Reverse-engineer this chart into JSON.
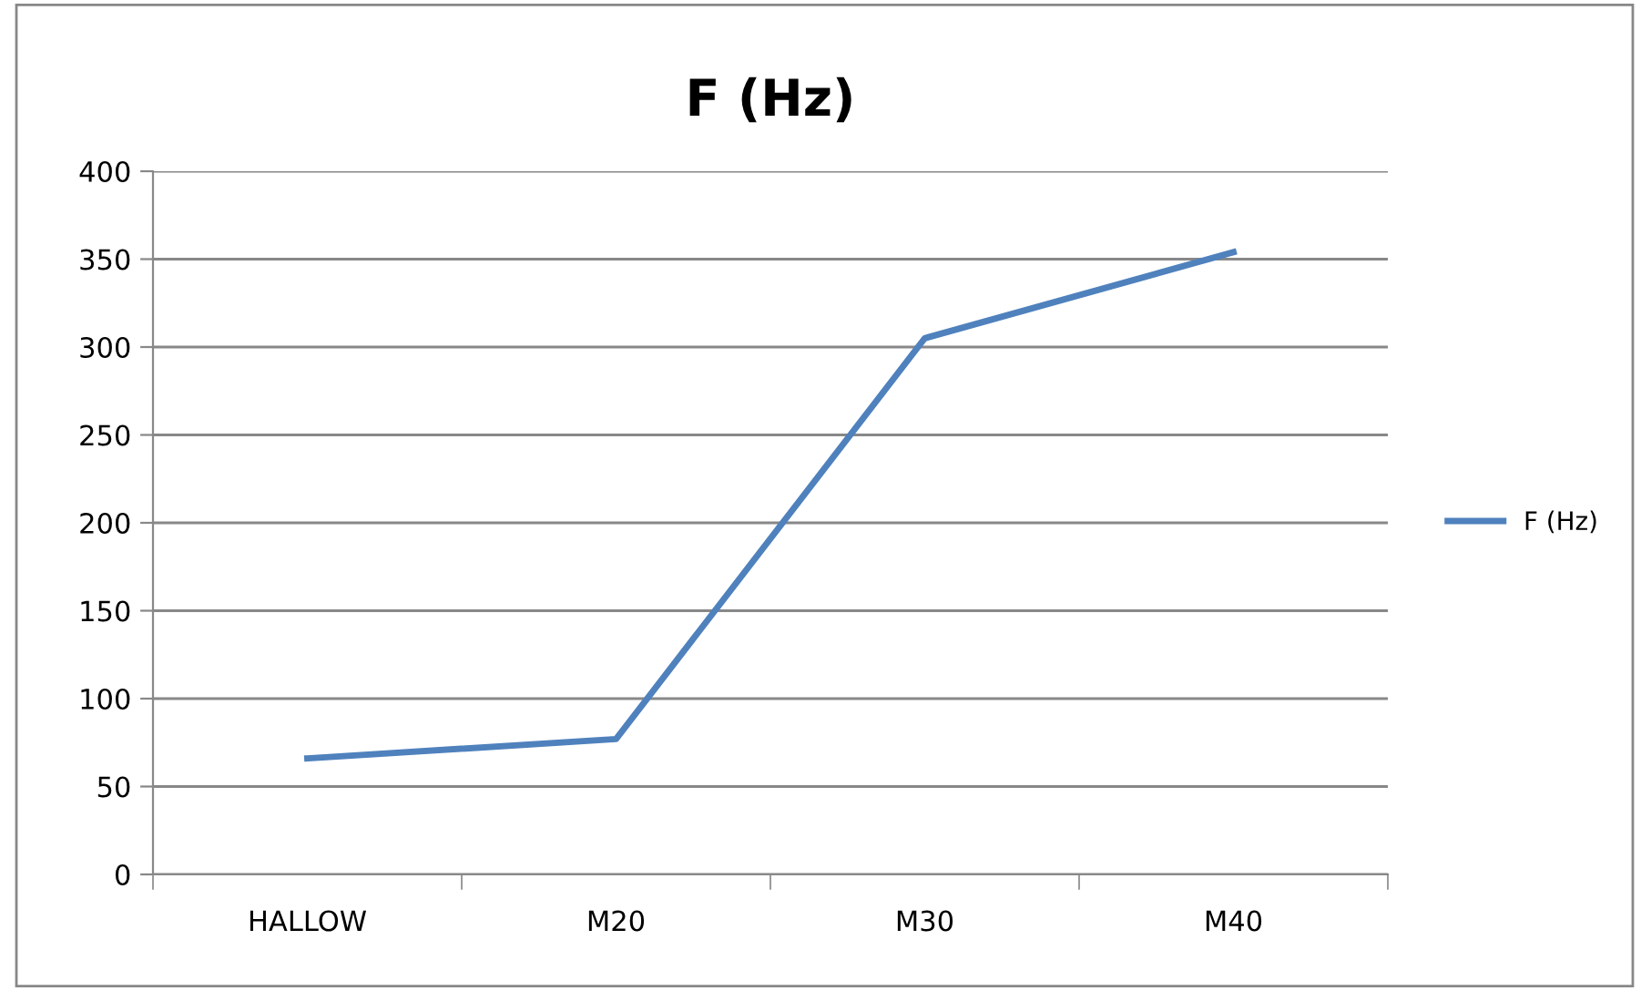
{
  "chart_data": {
    "type": "line",
    "title": "F (Hz)",
    "categories": [
      "HALLOW",
      "M20",
      "M30",
      "M40"
    ],
    "series": [
      {
        "name": "F (Hz)",
        "color": "#4f81bd",
        "values": [
          66,
          77,
          305,
          354
        ]
      }
    ],
    "ylim": [
      0,
      400
    ],
    "yticks": [
      0,
      50,
      100,
      150,
      200,
      250,
      300,
      350,
      400
    ],
    "grid": "y",
    "legend": "right",
    "marker": "none",
    "line_style": "solid"
  }
}
